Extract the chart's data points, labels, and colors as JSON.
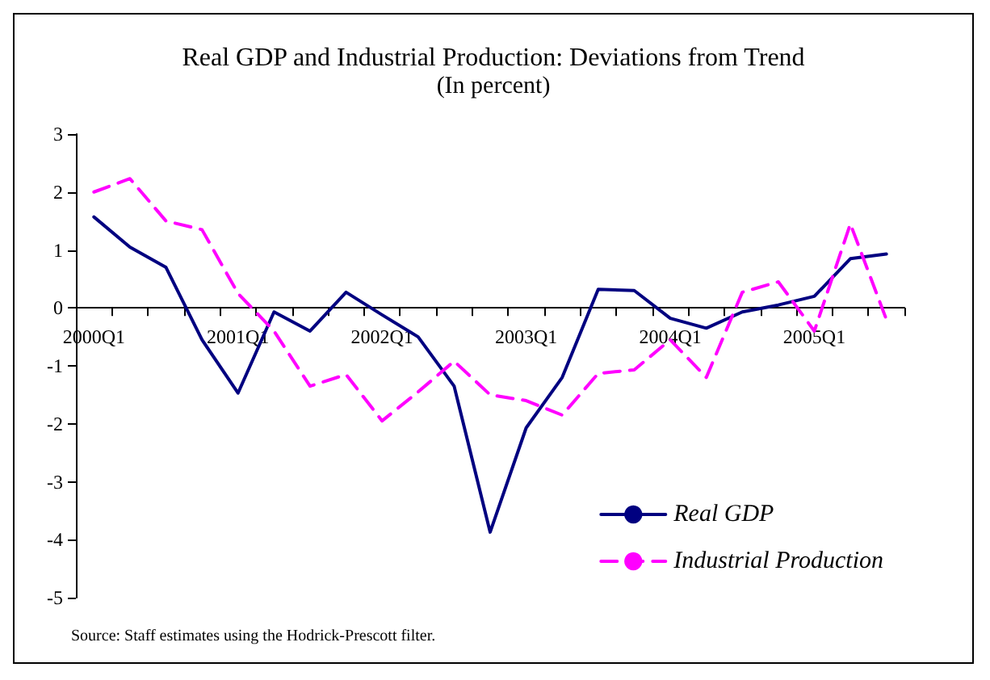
{
  "chart_data": {
    "type": "line",
    "title": "Real GDP and Industrial Production: Deviations from Trend",
    "subtitle": "(In percent)",
    "categories": [
      "2000Q1",
      null,
      null,
      null,
      "2001Q1",
      null,
      null,
      null,
      "2002Q1",
      null,
      null,
      null,
      "2003Q1",
      null,
      null,
      null,
      "2004Q1",
      null,
      null,
      null,
      "2005Q1",
      null,
      null
    ],
    "series": [
      {
        "name": "Real GDP",
        "color": "#000080",
        "line_style": "solid",
        "values": [
          1.57,
          1.05,
          0.7,
          -0.55,
          -1.47,
          -0.07,
          -0.4,
          0.27,
          -0.12,
          -0.5,
          -1.35,
          -3.87,
          -2.07,
          -1.2,
          0.32,
          0.3,
          -0.18,
          -0.35,
          -0.07,
          0.05,
          0.2,
          0.85,
          0.93
        ]
      },
      {
        "name": "Industrial Production",
        "color": "#ff00ff",
        "line_style": "dashed",
        "values": [
          2.0,
          2.23,
          1.5,
          1.35,
          0.25,
          -0.4,
          -1.35,
          -1.15,
          -1.95,
          -1.45,
          -0.92,
          -1.5,
          -1.6,
          -1.85,
          -1.13,
          -1.07,
          -0.55,
          -1.2,
          0.27,
          0.45,
          -0.4,
          1.45,
          -0.2
        ]
      }
    ],
    "ylim": [
      -5,
      3
    ],
    "yticks": [
      -5,
      -4,
      -3,
      -2,
      -1,
      0,
      1,
      2,
      3
    ],
    "grid": false,
    "legend": "bottom right",
    "marker": "none",
    "annotations": [
      "Source: Staff estimates using the Hodrick-Prescott filter."
    ]
  }
}
